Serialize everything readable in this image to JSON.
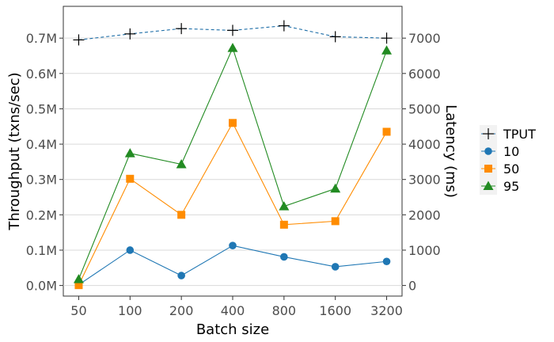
{
  "chart_data": {
    "type": "line",
    "x_label": "Batch size",
    "y_left_label": "Throughput (txns/sec)",
    "y_right_label": "Latency (ms)",
    "categories": [
      "50",
      "100",
      "200",
      "400",
      "800",
      "1600",
      "3200"
    ],
    "y_left_ticks": [
      "0.0M",
      "0.1M",
      "0.2M",
      "0.3M",
      "0.4M",
      "0.5M",
      "0.6M",
      "0.7M"
    ],
    "y_left_range": [
      -0.03,
      0.79
    ],
    "y_right_ticks": [
      "0",
      "1000",
      "2000",
      "3000",
      "4000",
      "5000",
      "6000",
      "7000"
    ],
    "y_right_range": [
      -300,
      7900
    ],
    "grid": true,
    "legend_position": "right",
    "series": [
      {
        "name": "TPUT",
        "axis": "left",
        "unit": "M txns/sec",
        "marker": "plus",
        "line": "dashed",
        "color": "#1f6fa8",
        "values": [
          0.695,
          0.712,
          0.727,
          0.722,
          0.735,
          0.704,
          0.7
        ]
      },
      {
        "name": "10",
        "axis": "right",
        "unit": "ms",
        "marker": "circle",
        "line": "solid",
        "color": "#1f77b4",
        "values": [
          20,
          1000,
          280,
          1130,
          810,
          530,
          680
        ]
      },
      {
        "name": "50",
        "axis": "right",
        "unit": "ms",
        "marker": "square",
        "line": "solid",
        "color": "#ff8c00",
        "values": [
          10,
          3020,
          2000,
          4600,
          1720,
          1820,
          4350
        ]
      },
      {
        "name": "95",
        "axis": "right",
        "unit": "ms",
        "marker": "triangle",
        "line": "solid",
        "color": "#228b22",
        "values": [
          180,
          3740,
          3430,
          6720,
          2240,
          2740,
          6650
        ]
      }
    ]
  }
}
